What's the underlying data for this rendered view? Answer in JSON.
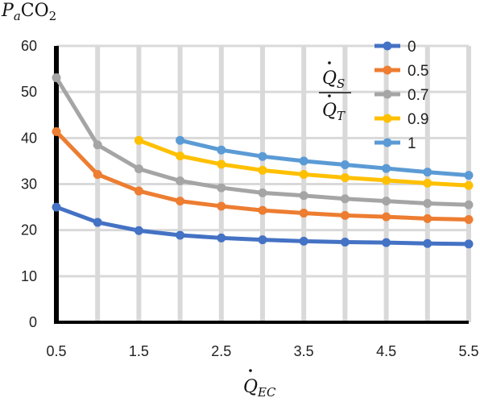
{
  "chart_data": {
    "type": "line",
    "x_label": {
      "base": "Q",
      "sub": "EC",
      "dot": true
    },
    "y_label": {
      "base": "P",
      "sub1": "a",
      "mid": "CO",
      "sub2": "2"
    },
    "legend_title": {
      "numerator": {
        "base": "Q",
        "sub": "S"
      },
      "denominator": {
        "base": "Q",
        "sub": "T"
      }
    },
    "xlim": [
      0.5,
      5.5
    ],
    "ylim": [
      0,
      60
    ],
    "x_ticks": [
      "0.5",
      "1.5",
      "2.5",
      "3.5",
      "4.5",
      "5.5"
    ],
    "x_tick_values": [
      0.5,
      1.5,
      2.5,
      3.5,
      4.5,
      5.5
    ],
    "y_ticks": [
      "0",
      "10",
      "20",
      "30",
      "40",
      "50",
      "60"
    ],
    "y_tick_values": [
      0,
      10,
      20,
      30,
      40,
      50,
      60
    ],
    "vertical_gridlines": [
      0.5,
      1,
      1.5,
      2,
      2.5,
      3,
      3.5,
      4,
      4.5,
      5,
      5.5
    ],
    "grid": true,
    "legend_position": "top-right",
    "series": [
      {
        "name": "0",
        "color": "#4472C4",
        "x": [
          0.5,
          1,
          1.5,
          2,
          2.5,
          3,
          3.5,
          4,
          4.5,
          5,
          5.5
        ],
        "y": [
          25.0,
          21.7,
          19.9,
          18.9,
          18.3,
          17.9,
          17.6,
          17.4,
          17.3,
          17.1,
          17.0
        ]
      },
      {
        "name": "0.5",
        "color": "#ED7D31",
        "x": [
          0.5,
          1,
          1.5,
          2,
          2.5,
          3,
          3.5,
          4,
          4.5,
          5,
          5.5
        ],
        "y": [
          41.4,
          32.1,
          28.5,
          26.3,
          25.2,
          24.3,
          23.7,
          23.2,
          22.9,
          22.5,
          22.3
        ]
      },
      {
        "name": "0.7",
        "color": "#A5A5A5",
        "x": [
          0.5,
          1,
          1.5,
          2,
          2.5,
          3,
          3.5,
          4,
          4.5,
          5,
          5.5
        ],
        "y": [
          53.1,
          38.5,
          33.3,
          30.7,
          29.2,
          28.1,
          27.5,
          26.8,
          26.3,
          25.8,
          25.5
        ]
      },
      {
        "name": "0.9",
        "color": "#FFC000",
        "x": [
          1.5,
          2,
          2.5,
          3,
          3.5,
          4,
          4.5,
          5,
          5.5
        ],
        "y": [
          39.5,
          36.1,
          34.3,
          33.0,
          32.1,
          31.4,
          30.8,
          30.2,
          29.7
        ]
      },
      {
        "name": "1",
        "color": "#5B9BD5",
        "x": [
          2,
          2.5,
          3,
          3.5,
          4,
          4.5,
          5,
          5.5
        ],
        "y": [
          39.5,
          37.4,
          36.0,
          35.0,
          34.2,
          33.4,
          32.6,
          31.9
        ]
      }
    ]
  }
}
